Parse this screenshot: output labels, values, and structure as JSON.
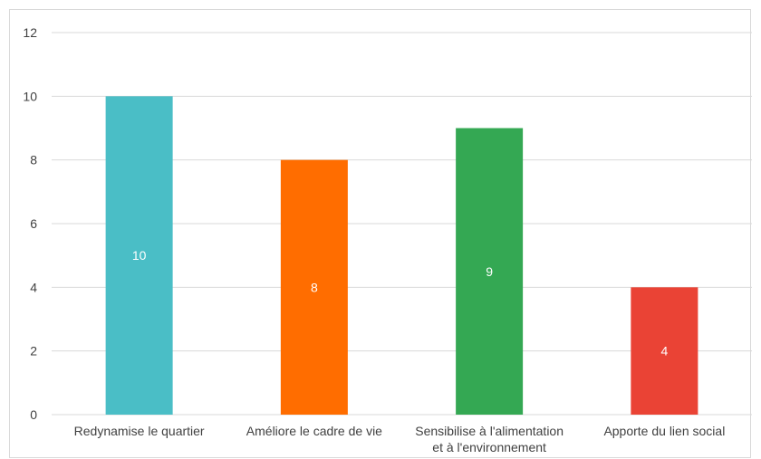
{
  "chart_data": {
    "type": "bar",
    "categories": [
      [
        "Redynamise le quartier"
      ],
      [
        "Améliore le cadre de vie"
      ],
      [
        "Sensibilise à l'alimentation",
        "et à l'environnement"
      ],
      [
        "Apporte du lien social"
      ]
    ],
    "values": [
      10,
      8,
      9,
      4
    ],
    "colors": [
      "#4ABEC6",
      "#FF6D00",
      "#34A853",
      "#EA4335"
    ],
    "ylim": [
      0,
      12
    ],
    "yticks": [
      "0",
      "2",
      "4",
      "6",
      "8",
      "10",
      "12"
    ],
    "grid": true,
    "legend": "none",
    "data_labels": [
      "10",
      "8",
      "9",
      "4"
    ]
  }
}
